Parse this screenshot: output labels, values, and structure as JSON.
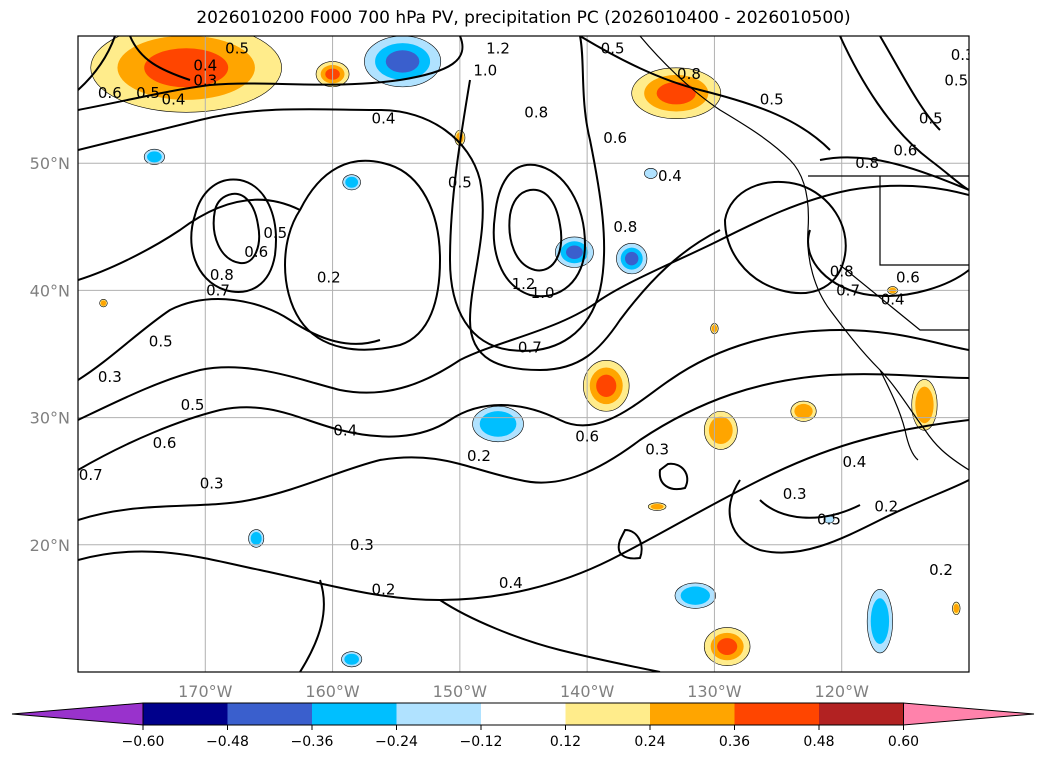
{
  "title": "2026010200 F000 700 hPa PV, precipitation PC (2026010400 - 2026010500)",
  "chart_data": {
    "type": "map-contour",
    "variable_contours": "700 hPa PV",
    "variable_shaded": "precipitation PC",
    "lon_range": [
      -180,
      -110
    ],
    "lat_range": [
      10,
      60
    ],
    "x_ticks": [
      {
        "lon": -170,
        "label": "170°W"
      },
      {
        "lon": -160,
        "label": "160°W"
      },
      {
        "lon": -150,
        "label": "150°W"
      },
      {
        "lon": -140,
        "label": "140°W"
      },
      {
        "lon": -130,
        "label": "130°W"
      },
      {
        "lon": -120,
        "label": "120°W"
      }
    ],
    "y_ticks": [
      {
        "lat": 20,
        "label": "20°N"
      },
      {
        "lat": 30,
        "label": "30°N"
      },
      {
        "lat": 40,
        "label": "40°N"
      },
      {
        "lat": 50,
        "label": "50°N"
      }
    ],
    "colorbar": {
      "ticks": [
        "−0.60",
        "−0.48",
        "−0.36",
        "−0.24",
        "−0.12",
        "0.12",
        "0.24",
        "0.36",
        "0.48",
        "0.60"
      ],
      "colors": [
        "#9932cc",
        "#00008b",
        "#3a5fcd",
        "#00bfff",
        "#b0e2ff",
        "#ffffff",
        "#ffec8b",
        "#ffa500",
        "#ff4500",
        "#b22222",
        "#ff82ab"
      ]
    },
    "contour_labels": [
      {
        "lon": -168.7,
        "lat": 41.2,
        "text": "0.8"
      },
      {
        "lon": -169.0,
        "lat": 40.0,
        "text": "0.7"
      },
      {
        "lon": -166.0,
        "lat": 43.0,
        "text": "0.6"
      },
      {
        "lon": -164.5,
        "lat": 44.5,
        "text": "0.5"
      },
      {
        "lon": -160.3,
        "lat": 41.0,
        "text": "0.2"
      },
      {
        "lon": -145.0,
        "lat": 40.5,
        "text": "1.2"
      },
      {
        "lon": -143.5,
        "lat": 39.8,
        "text": "1.0"
      },
      {
        "lon": -144.5,
        "lat": 35.5,
        "text": "0.7"
      },
      {
        "lon": -140.0,
        "lat": 28.5,
        "text": "0.6"
      },
      {
        "lon": -148.5,
        "lat": 27.0,
        "text": "0.2"
      },
      {
        "lon": -146.0,
        "lat": 17.0,
        "text": "0.4"
      },
      {
        "lon": -156.0,
        "lat": 16.5,
        "text": "0.2"
      },
      {
        "lon": -157.7,
        "lat": 20.0,
        "text": "0.3"
      },
      {
        "lon": -173.5,
        "lat": 36.0,
        "text": "0.5"
      },
      {
        "lon": -177.5,
        "lat": 33.2,
        "text": "0.3"
      },
      {
        "lon": -171.0,
        "lat": 31.0,
        "text": "0.5"
      },
      {
        "lon": -173.2,
        "lat": 28.0,
        "text": "0.6"
      },
      {
        "lon": -159.0,
        "lat": 29.0,
        "text": "0.4"
      },
      {
        "lon": -169.5,
        "lat": 24.8,
        "text": "0.3"
      },
      {
        "lon": -179.0,
        "lat": 25.5,
        "text": "0.7"
      },
      {
        "lon": -150.0,
        "lat": 48.5,
        "text": "0.5"
      },
      {
        "lon": -156.0,
        "lat": 53.5,
        "text": "0.4"
      },
      {
        "lon": -148.0,
        "lat": 57.3,
        "text": "1.0"
      },
      {
        "lon": -147.0,
        "lat": 59.0,
        "text": "1.2"
      },
      {
        "lon": -144.0,
        "lat": 54.0,
        "text": "0.8"
      },
      {
        "lon": -137.8,
        "lat": 52.0,
        "text": "0.6"
      },
      {
        "lon": -133.5,
        "lat": 49.0,
        "text": "0.4"
      },
      {
        "lon": -137.0,
        "lat": 45.0,
        "text": "0.8"
      },
      {
        "lon": -138.0,
        "lat": 59.0,
        "text": "0.5"
      },
      {
        "lon": -132.0,
        "lat": 57.0,
        "text": "0.8"
      },
      {
        "lon": -125.5,
        "lat": 55.0,
        "text": "0.5"
      },
      {
        "lon": -118.0,
        "lat": 50.0,
        "text": "0.8"
      },
      {
        "lon": -115.0,
        "lat": 51.0,
        "text": "0.6"
      },
      {
        "lon": -120.0,
        "lat": 41.5,
        "text": "0.8"
      },
      {
        "lon": -119.5,
        "lat": 40.0,
        "text": "0.7"
      },
      {
        "lon": -114.8,
        "lat": 41.0,
        "text": "0.6"
      },
      {
        "lon": -116.0,
        "lat": 39.3,
        "text": "0.4"
      },
      {
        "lon": -119.0,
        "lat": 26.5,
        "text": "0.4"
      },
      {
        "lon": -116.5,
        "lat": 23.0,
        "text": "0.2"
      },
      {
        "lon": -123.7,
        "lat": 24.0,
        "text": "0.3"
      },
      {
        "lon": -121.0,
        "lat": 22.0,
        "text": "0.5"
      },
      {
        "lon": -134.5,
        "lat": 27.5,
        "text": "0.3"
      },
      {
        "lon": -112.2,
        "lat": 18.0,
        "text": "0.2"
      },
      {
        "lon": -172.5,
        "lat": 55.0,
        "text": "0.4"
      },
      {
        "lon": -174.5,
        "lat": 55.5,
        "text": "0.5"
      },
      {
        "lon": -170.0,
        "lat": 56.5,
        "text": "0.3"
      },
      {
        "lon": -177.5,
        "lat": 55.5,
        "text": "0.6"
      },
      {
        "lon": -167.5,
        "lat": 59.0,
        "text": "0.5"
      },
      {
        "lon": -170.0,
        "lat": 57.7,
        "text": "0.4"
      },
      {
        "lon": -111.0,
        "lat": 56.5,
        "text": "0.5"
      },
      {
        "lon": -110.5,
        "lat": 58.5,
        "text": "0.3"
      },
      {
        "lon": -113.0,
        "lat": 53.5,
        "text": "0.5"
      }
    ],
    "precip_blobs": [
      {
        "lon": -171.5,
        "lat": 57.5,
        "rx": 7.5,
        "ry": 3.5,
        "value": 0.4
      },
      {
        "lon": -160.0,
        "lat": 57.0,
        "rx": 1.3,
        "ry": 1.0,
        "value": 0.36
      },
      {
        "lon": -133.0,
        "lat": 55.5,
        "rx": 3.5,
        "ry": 2.0,
        "value": 0.38
      },
      {
        "lon": -138.5,
        "lat": 32.5,
        "rx": 1.8,
        "ry": 2.0,
        "value": 0.42
      },
      {
        "lon": -129.5,
        "lat": 29.0,
        "rx": 1.3,
        "ry": 1.5,
        "value": 0.3
      },
      {
        "lon": -129.0,
        "lat": 12.0,
        "rx": 1.8,
        "ry": 1.5,
        "value": 0.4
      },
      {
        "lon": -113.5,
        "lat": 31.0,
        "rx": 1.0,
        "ry": 2.0,
        "value": 0.3
      },
      {
        "lon": -123.0,
        "lat": 30.5,
        "rx": 1.0,
        "ry": 0.8,
        "value": 0.28
      },
      {
        "lon": -154.5,
        "lat": 58.0,
        "rx": 3.0,
        "ry": 2.0,
        "value": -0.38
      },
      {
        "lon": -141.0,
        "lat": 43.0,
        "rx": 1.5,
        "ry": 1.2,
        "value": -0.36
      },
      {
        "lon": -136.5,
        "lat": 42.5,
        "rx": 1.2,
        "ry": 1.2,
        "value": -0.38
      },
      {
        "lon": -147.0,
        "lat": 29.5,
        "rx": 2.0,
        "ry": 1.4,
        "value": -0.3
      },
      {
        "lon": -131.5,
        "lat": 16.0,
        "rx": 1.6,
        "ry": 1.0,
        "value": -0.3
      },
      {
        "lon": -117.0,
        "lat": 14.0,
        "rx": 1.0,
        "ry": 2.5,
        "value": -0.28
      },
      {
        "lon": -158.5,
        "lat": 48.5,
        "rx": 0.7,
        "ry": 0.6,
        "value": -0.28
      },
      {
        "lon": -166.0,
        "lat": 20.5,
        "rx": 0.6,
        "ry": 0.7,
        "value": -0.26
      },
      {
        "lon": -158.5,
        "lat": 11.0,
        "rx": 0.8,
        "ry": 0.6,
        "value": -0.26
      },
      {
        "lon": -174.0,
        "lat": 50.5,
        "rx": 0.8,
        "ry": 0.6,
        "value": -0.24
      },
      {
        "lon": -135.0,
        "lat": 49.2,
        "rx": 0.5,
        "ry": 0.4,
        "value": -0.22
      },
      {
        "lon": -134.5,
        "lat": 23.0,
        "rx": 0.7,
        "ry": 0.3,
        "value": 0.26
      },
      {
        "lon": -150.0,
        "lat": 52.0,
        "rx": 0.4,
        "ry": 0.6,
        "value": 0.26
      },
      {
        "lon": -178.0,
        "lat": 39.0,
        "rx": 0.3,
        "ry": 0.3,
        "value": 0.26
      },
      {
        "lon": -130.0,
        "lat": 37.0,
        "rx": 0.3,
        "ry": 0.4,
        "value": 0.26
      },
      {
        "lon": -121.0,
        "lat": 22.0,
        "rx": 0.4,
        "ry": 0.3,
        "value": -0.22
      },
      {
        "lon": -111.0,
        "lat": 15.0,
        "rx": 0.3,
        "ry": 0.5,
        "value": 0.3
      },
      {
        "lon": -116.0,
        "lat": 40.0,
        "rx": 0.4,
        "ry": 0.3,
        "value": 0.26
      }
    ]
  }
}
